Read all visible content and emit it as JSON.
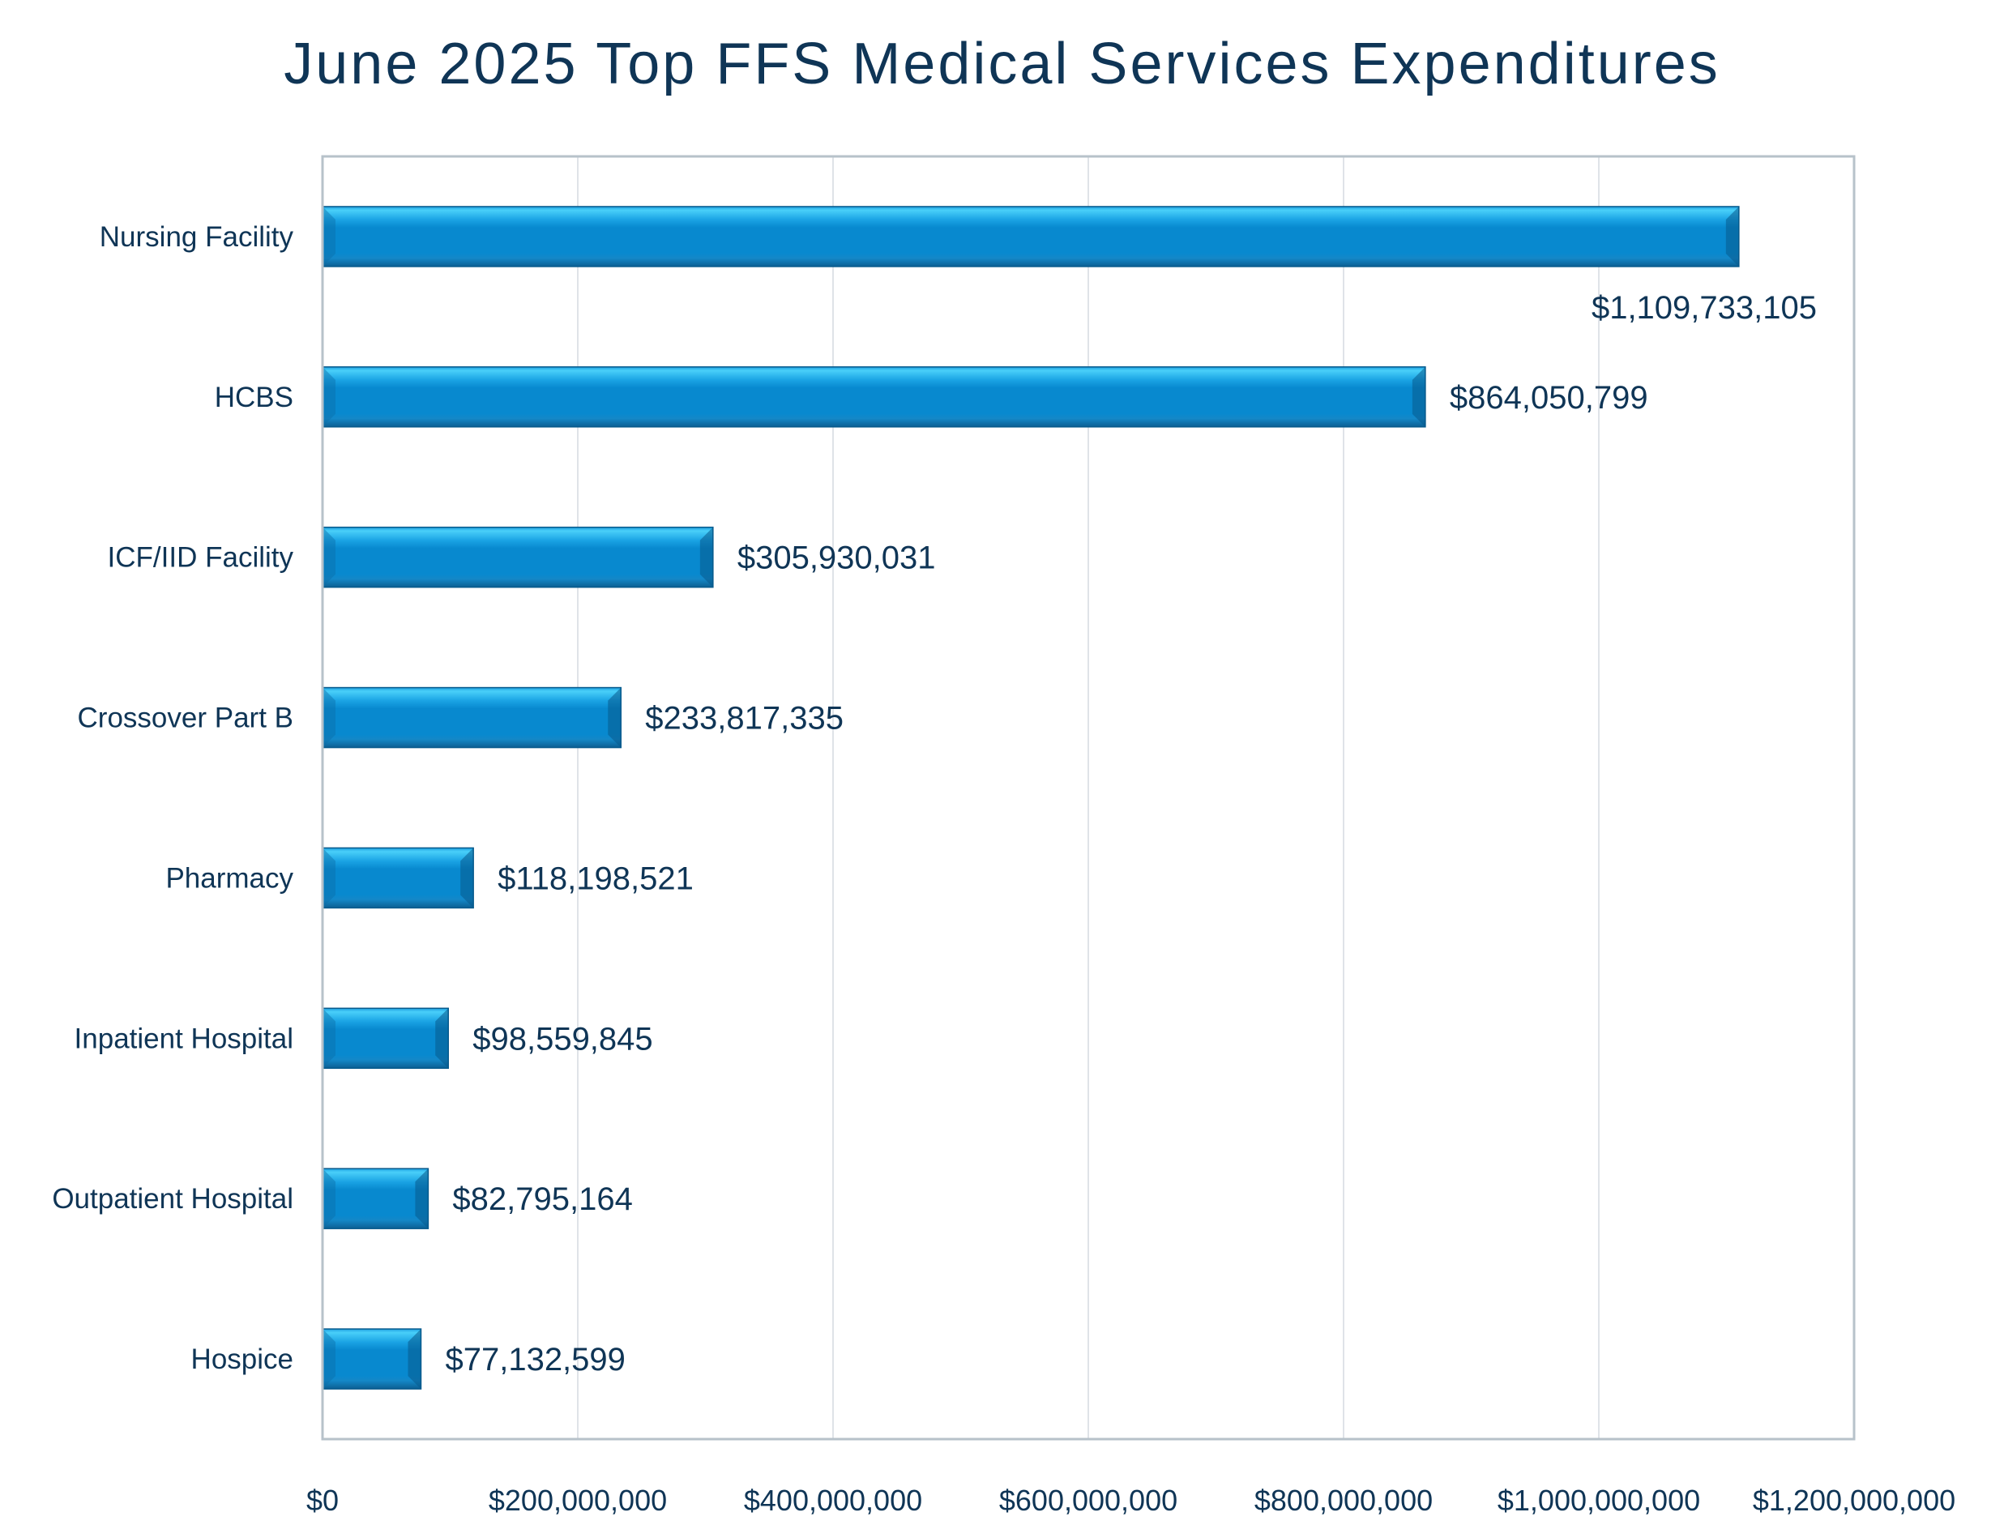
{
  "chart_data": {
    "type": "bar",
    "orientation": "horizontal",
    "title": "June 2025 Top FFS Medical Services Expenditures",
    "xlabel": "",
    "ylabel": "",
    "categories": [
      "Nursing Facility",
      "HCBS",
      "ICF/IID Facility",
      "Crossover Part B",
      "Pharmacy",
      "Inpatient Hospital",
      "Outpatient Hospital",
      "Hospice"
    ],
    "values": [
      1109733105,
      864050799,
      305930031,
      233817335,
      118198521,
      98559845,
      82795164,
      77132599
    ],
    "data_labels": [
      "$1,109,733,105",
      "$864,050,799",
      "$305,930,031",
      "$233,817,335",
      "$118,198,521",
      "$98,559,845",
      "$82,795,164",
      "$77,132,599"
    ],
    "xlim": [
      0,
      1200000000
    ],
    "x_ticks": [
      0,
      200000000,
      400000000,
      600000000,
      800000000,
      1000000000,
      1200000000
    ],
    "x_tick_labels": [
      "$0",
      "$200,000,000",
      "$400,000,000",
      "$600,000,000",
      "$800,000,000",
      "$1,000,000,000",
      "$1,200,000,000"
    ],
    "grid": "vertical",
    "legend": "none",
    "colors": {
      "bar": "#0889cf",
      "bar_highlight": "#3fcaf7",
      "bar_shadow": "#075a8c",
      "text": "#0f3556",
      "gridline": "#dfe3e8",
      "axis": "#b7c2ca"
    }
  }
}
